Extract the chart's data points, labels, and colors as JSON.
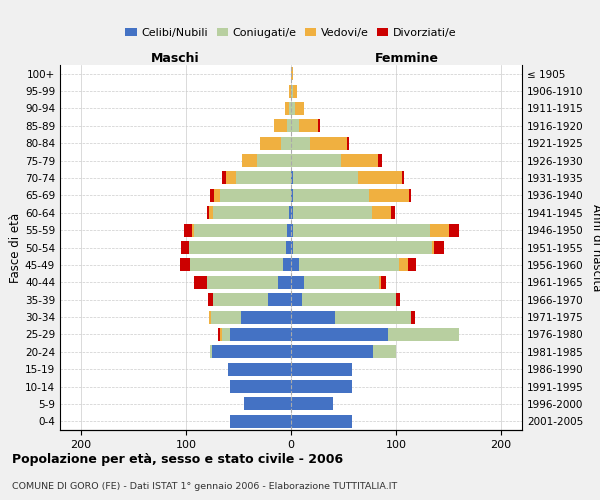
{
  "age_groups": [
    "0-4",
    "5-9",
    "10-14",
    "15-19",
    "20-24",
    "25-29",
    "30-34",
    "35-39",
    "40-44",
    "45-49",
    "50-54",
    "55-59",
    "60-64",
    "65-69",
    "70-74",
    "75-79",
    "80-84",
    "85-89",
    "90-94",
    "95-99",
    "100+"
  ],
  "birth_years": [
    "2001-2005",
    "1996-2000",
    "1991-1995",
    "1986-1990",
    "1981-1985",
    "1976-1980",
    "1971-1975",
    "1966-1970",
    "1961-1965",
    "1956-1960",
    "1951-1955",
    "1946-1950",
    "1941-1945",
    "1936-1940",
    "1931-1935",
    "1926-1930",
    "1921-1925",
    "1916-1920",
    "1911-1915",
    "1906-1910",
    "≤ 1905"
  ],
  "male_celibe": [
    58,
    45,
    58,
    60,
    75,
    58,
    48,
    22,
    12,
    8,
    5,
    4,
    2,
    0,
    0,
    0,
    0,
    0,
    0,
    0,
    0
  ],
  "male_coniugato": [
    0,
    0,
    0,
    0,
    2,
    8,
    28,
    52,
    68,
    88,
    92,
    88,
    72,
    68,
    52,
    32,
    10,
    4,
    2,
    0,
    0
  ],
  "male_vedovo": [
    0,
    0,
    0,
    0,
    0,
    2,
    2,
    0,
    0,
    0,
    0,
    2,
    4,
    5,
    10,
    15,
    20,
    12,
    4,
    2,
    0
  ],
  "male_divorziato": [
    0,
    0,
    0,
    0,
    0,
    2,
    0,
    5,
    12,
    10,
    8,
    8,
    2,
    4,
    4,
    0,
    0,
    0,
    0,
    0,
    0
  ],
  "female_nubile": [
    58,
    40,
    58,
    58,
    78,
    92,
    42,
    10,
    12,
    8,
    2,
    2,
    2,
    2,
    2,
    0,
    0,
    0,
    0,
    0,
    0
  ],
  "female_coniugata": [
    0,
    0,
    0,
    0,
    22,
    68,
    72,
    90,
    72,
    95,
    132,
    130,
    75,
    72,
    62,
    48,
    18,
    8,
    4,
    2,
    0
  ],
  "female_vedova": [
    0,
    0,
    0,
    0,
    0,
    0,
    0,
    0,
    2,
    8,
    2,
    18,
    18,
    38,
    42,
    35,
    35,
    18,
    8,
    4,
    2
  ],
  "female_divorziata": [
    0,
    0,
    0,
    0,
    0,
    0,
    4,
    4,
    4,
    8,
    10,
    10,
    4,
    2,
    2,
    4,
    2,
    2,
    0,
    0,
    0
  ],
  "color_celibe": "#4472c4",
  "color_coniugato": "#b8cfa0",
  "color_vedovo": "#f0b040",
  "color_divorziato": "#cc0000",
  "xlim": 220,
  "title": "Popolazione per età, sesso e stato civile - 2006",
  "subtitle": "COMUNE DI GORO (FE) - Dati ISTAT 1° gennaio 2006 - Elaborazione TUTTITALIA.IT",
  "ylabel_left": "Fasce di età",
  "ylabel_right": "Anni di nascita",
  "xlabel_left": "Maschi",
  "xlabel_right": "Femmine",
  "bg_color": "#f0f0f0",
  "plot_bg": "#ffffff"
}
